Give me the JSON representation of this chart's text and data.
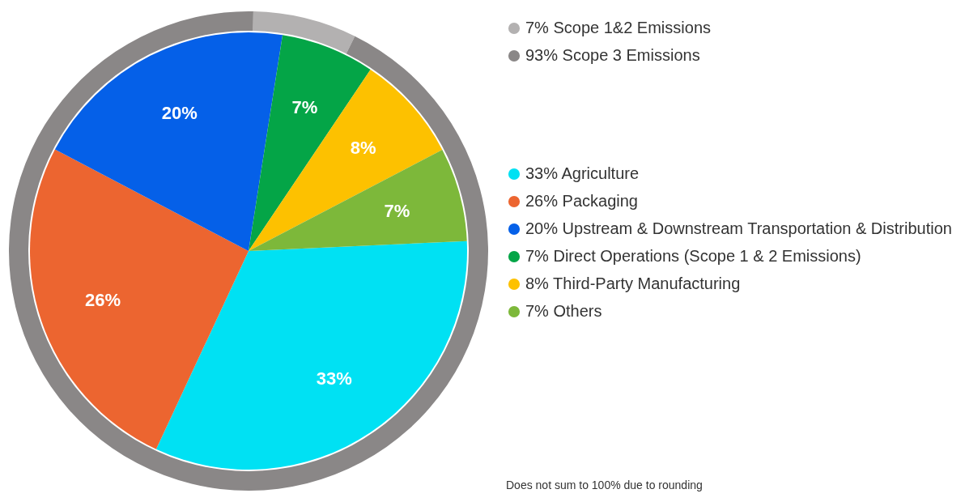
{
  "chart_data": [
    {
      "type": "donut",
      "categories": [
        "Scope 1&2 Emissions",
        "Scope 3 Emissions"
      ],
      "values": [
        7,
        93
      ],
      "colors": [
        "#b3b1b1",
        "#8a8787"
      ],
      "value_labels": [
        "7%",
        "93%"
      ],
      "legend": "right"
    },
    {
      "type": "pie",
      "categories": [
        "Agriculture",
        "Packaging",
        "Upstream & Downstream Transportation & Distribution",
        "Direct Operations (Scope 1 & 2 Emissions)",
        "Third-Party Manufacturing",
        "Others"
      ],
      "values": [
        33,
        26,
        20,
        7,
        8,
        7
      ],
      "colors": [
        "#00e1f3",
        "#ec6530",
        "#0560e8",
        "#04a547",
        "#fdc100",
        "#7db83a"
      ],
      "value_labels": [
        "33%",
        "26%",
        "20%",
        "7%",
        "8%",
        "7%"
      ],
      "legend": "right",
      "annotations": [
        "Does not sum to 100% due to rounding"
      ]
    }
  ]
}
